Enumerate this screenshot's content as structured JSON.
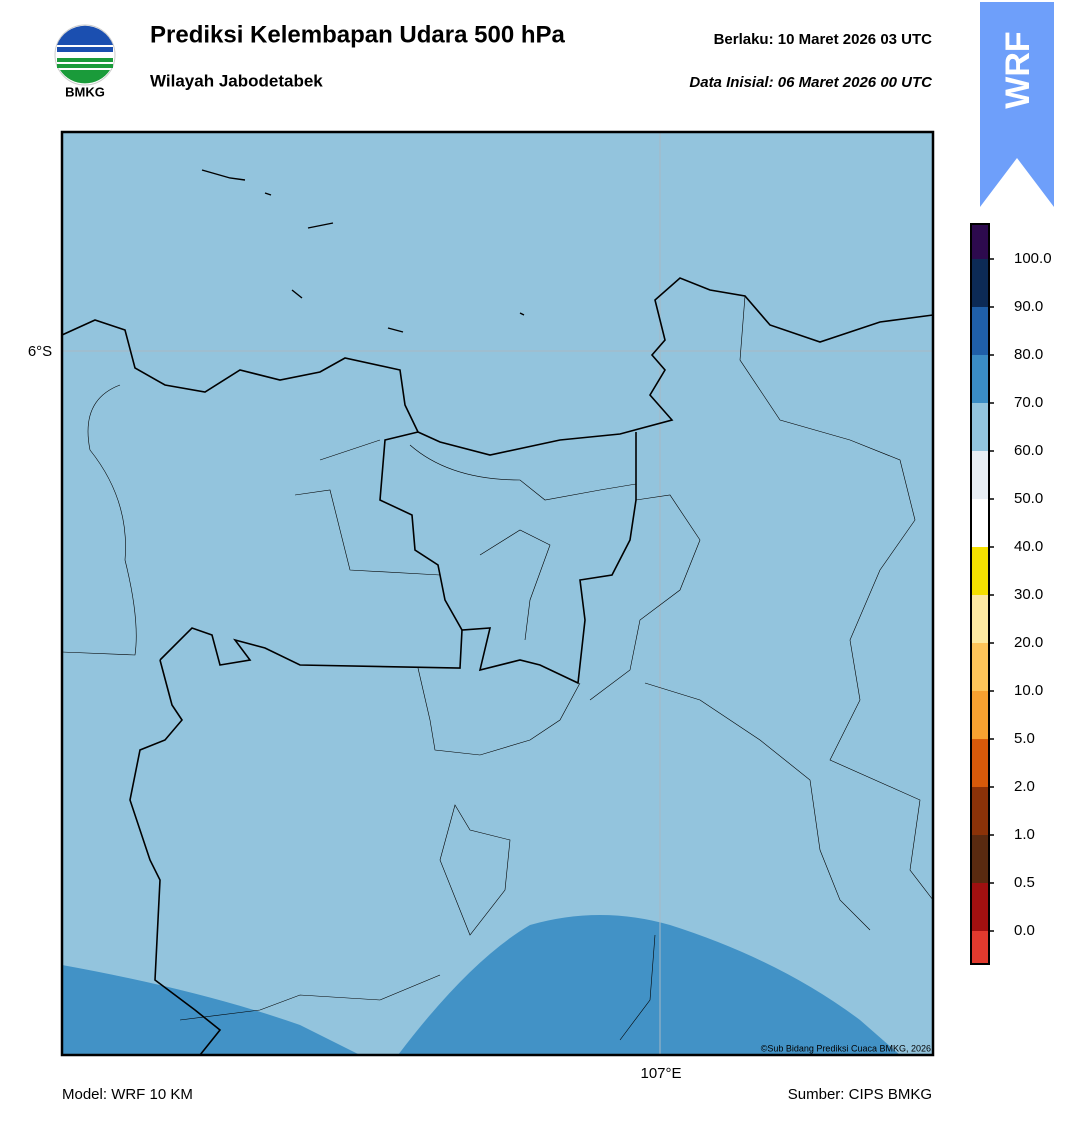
{
  "header": {
    "title": "Prediksi Kelembapan Udara 500 hPa",
    "subtitle": "Wilayah Jabodetabek",
    "valid": "Berlaku:  10 Maret 2026 03 UTC",
    "init": "Data Inisial:  06 Maret 2026 00 UTC",
    "logo_text": "BMKG",
    "badge": "WRF"
  },
  "map": {
    "lat_label": "6°S",
    "lon_label": "107°E",
    "credit": "©Sub Bidang Prediksi Cuaca BMKG, 2026"
  },
  "colorbar": {
    "labels": [
      "100.0",
      "90.0",
      "80.0",
      "70.0",
      "60.0",
      "50.0",
      "40.0",
      "30.0",
      "20.0",
      "10.0",
      "5.0",
      "2.0",
      "1.0",
      "0.5",
      "0.0"
    ],
    "colors": [
      "#2d0a4e",
      "#0c2a55",
      "#1f5fa8",
      "#3a8cc4",
      "#93c4dd",
      "#e8eef4",
      "#ffffff",
      "#f5e000",
      "#fde9a0",
      "#fdc45a",
      "#f7a030",
      "#d85a0a",
      "#8b3208",
      "#5a2a10",
      "#a01010",
      "#e03a2e"
    ]
  },
  "footer": {
    "model": "Model: WRF 10 KM",
    "source": "Sumber: CIPS BMKG"
  }
}
